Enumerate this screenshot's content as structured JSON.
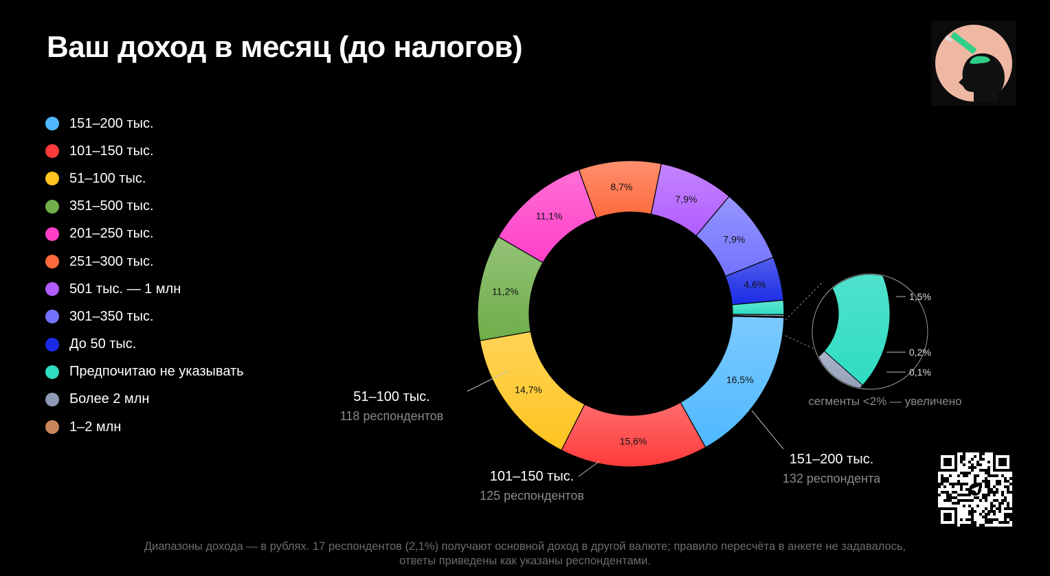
{
  "title": "Ваш доход в месяц (до налогов)",
  "legend": [
    {
      "label": "151–200 тыс.",
      "color": "#4fb8ff"
    },
    {
      "label": "101–150 тыс.",
      "color": "#ff3b3b"
    },
    {
      "label": "51–100 тыс.",
      "color": "#ffc41f"
    },
    {
      "label": "351–500 тыс.",
      "color": "#6fae4a"
    },
    {
      "label": "201–250 тыс.",
      "color": "#ff3fc8"
    },
    {
      "label": "251–300 тыс.",
      "color": "#ff6a3d"
    },
    {
      "label": "501 тыс. — 1 млн",
      "color": "#b05cff"
    },
    {
      "label": "301–350 тыс.",
      "color": "#7373ff"
    },
    {
      "label": "До 50 тыс.",
      "color": "#1a2ae6"
    },
    {
      "label": "Предпочитаю не указывать",
      "color": "#2edcc2"
    },
    {
      "label": "Более 2 млн",
      "color": "#8e99b3"
    },
    {
      "label": "1–2 млн",
      "color": "#c8855a"
    }
  ],
  "chart_data": {
    "type": "pie",
    "variant": "donut",
    "title": "Ваш доход в месяц (до налогов)",
    "slices": [
      {
        "label": "151–200 тыс.",
        "value": 16.5,
        "display": "16,5%",
        "color": "#4fb8ff"
      },
      {
        "label": "101–150 тыс.",
        "value": 15.6,
        "display": "15,6%",
        "color": "#ff3b3b"
      },
      {
        "label": "51–100 тыс.",
        "value": 14.7,
        "display": "14,7%",
        "color": "#ffc41f"
      },
      {
        "label": "351–500 тыс.",
        "value": 11.2,
        "display": "11,2%",
        "color": "#6fae4a"
      },
      {
        "label": "201–250 тыс.",
        "value": 11.1,
        "display": "11,1%",
        "color": "#ff3fc8"
      },
      {
        "label": "251–300 тыс.",
        "value": 8.7,
        "display": "8,7%",
        "color": "#ff6a3d"
      },
      {
        "label": "501 тыс. — 1 млн",
        "value": 7.9,
        "display": "7,9%",
        "color": "#b05cff"
      },
      {
        "label": "301–350 тыс.",
        "value": 7.9,
        "display": "7,9%",
        "color": "#7373ff"
      },
      {
        "label": "До 50 тыс.",
        "value": 4.6,
        "display": "4,6%",
        "color": "#1a2ae6"
      },
      {
        "label": "Предпочитаю не указывать",
        "value": 1.5,
        "display": "1,5%",
        "color": "#2edcc2"
      },
      {
        "label": "Более 2 млн",
        "value": 0.2,
        "display": "0,2%",
        "color": "#8e99b3"
      },
      {
        "label": "1–2 млн",
        "value": 0.1,
        "display": "0,1%",
        "color": "#c8855a"
      }
    ],
    "callouts": [
      {
        "label": "51–100 тыс.",
        "count": "118 респондентов"
      },
      {
        "label": "101–150 тыс.",
        "count": "125 респондентов"
      },
      {
        "label": "151–200 тыс.",
        "count": "132 респондента"
      }
    ],
    "zoom_caption": "сегменты <2% — увеличено",
    "legend_position": "left"
  },
  "footnote": {
    "line1": "Диапазоны дохода — в рублях. 17 респондентов (2,1%) получают основной доход в другой валюте; правило пересчёта в анкете не задавалось,",
    "line2": "ответы приведены как указаны респондентами."
  }
}
